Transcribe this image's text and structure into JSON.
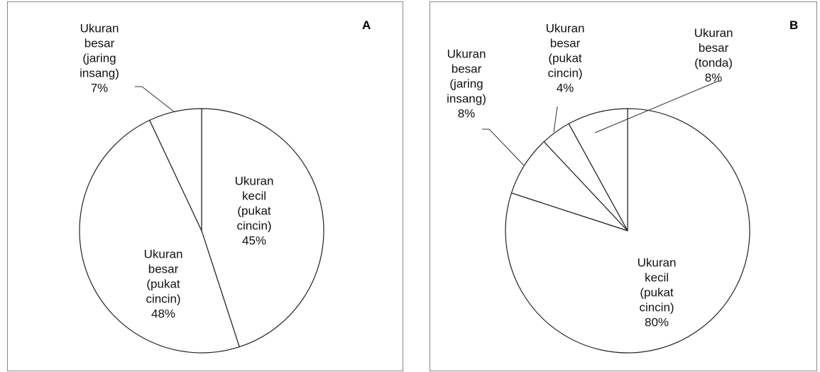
{
  "chart_data": [
    {
      "type": "pie",
      "title": "A",
      "categories": [
        "Ukuran kecil (pukat cincin)",
        "Ukuran besar (pukat cincin)",
        "Ukuran besar (jaring insang)"
      ],
      "values": [
        45,
        48,
        7
      ],
      "value_labels": [
        "45%",
        "48%",
        "7%"
      ],
      "color": "#ffffff"
    },
    {
      "type": "pie",
      "title": "B",
      "categories": [
        "Ukuran kecil (pukat cincin)",
        "Ukuran besar (jaring insang)",
        "Ukuran besar (pukat cincin)",
        "Ukuran besar (tonda)"
      ],
      "values": [
        80,
        8,
        4,
        8
      ],
      "value_labels": [
        "80%",
        "8%",
        "4%",
        "8%"
      ],
      "color": "#ffffff"
    }
  ]
}
